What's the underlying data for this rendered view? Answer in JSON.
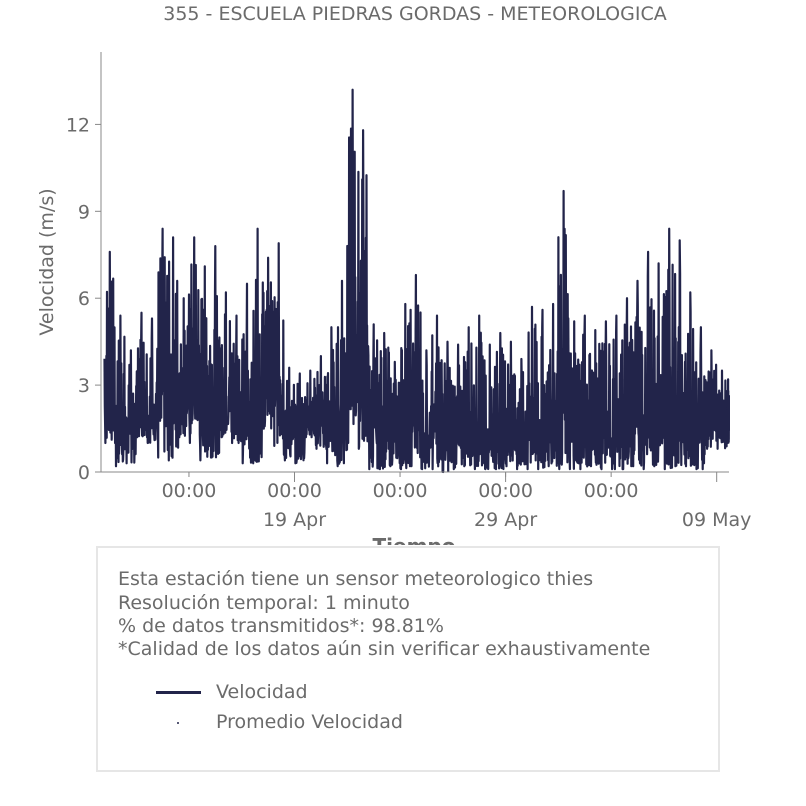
{
  "title": "355 - ESCUELA PIEDRAS GORDAS - METEOROLOGICA",
  "colors": {
    "series": "#22244a",
    "text": "#6b6b6b",
    "axis": "#888888",
    "box_border": "#e6e6e6"
  },
  "info": {
    "line1": "Esta estación tiene un sensor meteorologico thies",
    "line2": "Resolución temporal: 1 minuto",
    "line3": "% de datos transmitidos*: 98.81%",
    "line4": "*Calidad de los datos aún sin verificar exhaustivamente"
  },
  "legend": [
    {
      "label": "Velocidad",
      "marker": "line"
    },
    {
      "label": "Promedio Velocidad",
      "marker": "dot"
    }
  ],
  "chart_data": {
    "type": "line",
    "title": "355 - ESCUELA PIEDRAS GORDAS - METEOROLOGICA",
    "xlabel": "Tiempo",
    "ylabel": "Velocidad (m/s)",
    "xlim": [
      "2026-04-09T20:00",
      "2026-05-09T14:00"
    ],
    "ylim": [
      0,
      14.5
    ],
    "yticks": [
      0,
      3,
      6,
      9,
      12
    ],
    "xticks_minor": [
      {
        "x": "2026-04-14T00:00",
        "label": "00:00"
      },
      {
        "x": "2026-04-19T00:00",
        "label": "00:00"
      },
      {
        "x": "2026-04-24T00:00",
        "label": "00:00"
      },
      {
        "x": "2026-04-29T00:00",
        "label": "00:00"
      },
      {
        "x": "2026-05-04T00:00",
        "label": "00:00"
      }
    ],
    "xticks_major": [
      {
        "x": "2026-04-19T00:00",
        "label": "19 Apr"
      },
      {
        "x": "2026-04-29T00:00",
        "label": "29 Apr"
      },
      {
        "x": "2026-05-09T00:00",
        "label": "09 May"
      }
    ],
    "grid": false,
    "series": [
      {
        "name": "Velocidad",
        "x": [
          "2026-04-10T00:00",
          "2026-04-10T12:00",
          "2026-04-11T00:00",
          "2026-04-11T12:00",
          "2026-04-12T00:00",
          "2026-04-12T12:00",
          "2026-04-13T00:00",
          "2026-04-13T12:00",
          "2026-04-14T00:00",
          "2026-04-14T12:00",
          "2026-04-15T00:00",
          "2026-04-15T12:00",
          "2026-04-16T00:00",
          "2026-04-16T12:00",
          "2026-04-17T00:00",
          "2026-04-17T12:00",
          "2026-04-18T00:00",
          "2026-04-18T12:00",
          "2026-04-19T00:00",
          "2026-04-19T12:00",
          "2026-04-20T00:00",
          "2026-04-20T12:00",
          "2026-04-21T00:00",
          "2026-04-21T12:00",
          "2026-04-22T00:00",
          "2026-04-22T12:00",
          "2026-04-23T00:00",
          "2026-04-23T12:00",
          "2026-04-24T00:00",
          "2026-04-24T12:00",
          "2026-04-25T00:00",
          "2026-04-25T12:00",
          "2026-04-26T00:00",
          "2026-04-26T12:00",
          "2026-04-27T00:00",
          "2026-04-27T12:00",
          "2026-04-28T00:00",
          "2026-04-28T12:00",
          "2026-04-29T00:00",
          "2026-04-29T12:00",
          "2026-04-30T00:00",
          "2026-04-30T12:00",
          "2026-05-01T00:00",
          "2026-05-01T12:00",
          "2026-05-02T00:00",
          "2026-05-02T12:00",
          "2026-05-03T00:00",
          "2026-05-03T12:00",
          "2026-05-04T00:00",
          "2026-05-04T12:00",
          "2026-05-05T00:00",
          "2026-05-05T12:00",
          "2026-05-06T00:00",
          "2026-05-06T12:00",
          "2026-05-07T00:00",
          "2026-05-07T12:00",
          "2026-05-08T00:00",
          "2026-05-08T12:00",
          "2026-05-09T00:00",
          "2026-05-09T12:00"
        ],
        "min": [
          1.0,
          0.2,
          0.3,
          1.2,
          1.0,
          0.5,
          0.4,
          1.2,
          1.0,
          0.4,
          0.5,
          1.2,
          1.0,
          0.3,
          0.3,
          1.5,
          0.9,
          0.4,
          0.3,
          1.2,
          0.8,
          0.3,
          0.2,
          1.0,
          0.8,
          0.1,
          0.1,
          0.2,
          0.1,
          0.2,
          0.1,
          0.1,
          0.0,
          0.1,
          0.2,
          0.1,
          0.1,
          0.1,
          0.2,
          0.1,
          0.1,
          0.1,
          0.2,
          0.1,
          0.1,
          0.1,
          0.2,
          0.1,
          0.1,
          0.1,
          0.2,
          0.1,
          0.2,
          0.1,
          0.2,
          0.2,
          0.1,
          0.8,
          0.8,
          1.0
        ],
        "max": [
          7.6,
          5.4,
          4.2,
          5.5,
          5.3,
          8.4,
          8.1,
          6.0,
          8.1,
          7.1,
          7.8,
          6.2,
          5.4,
          6.5,
          8.4,
          7.4,
          7.9,
          3.6,
          3.4,
          3.5,
          4.0,
          5.0,
          6.6,
          13.2,
          11.8,
          5.1,
          4.8,
          3.8,
          5.8,
          6.8,
          4.2,
          5.4,
          4.5,
          4.4,
          5.0,
          5.4,
          4.4,
          4.8,
          4.5,
          3.9,
          5.7,
          5.6,
          5.8,
          9.7,
          5.2,
          5.4,
          4.9,
          5.2,
          5.4,
          6.0,
          6.6,
          7.6,
          7.2,
          8.4,
          8.0,
          6.2,
          5.0,
          4.2,
          3.5,
          3.2
        ]
      },
      {
        "name": "Promedio Velocidad",
        "x": [
          "2026-04-22T12:00",
          "2026-05-03T00:00",
          "2026-05-09T12:00"
        ],
        "y": [
          2.3,
          2.2,
          2.2
        ]
      }
    ]
  }
}
